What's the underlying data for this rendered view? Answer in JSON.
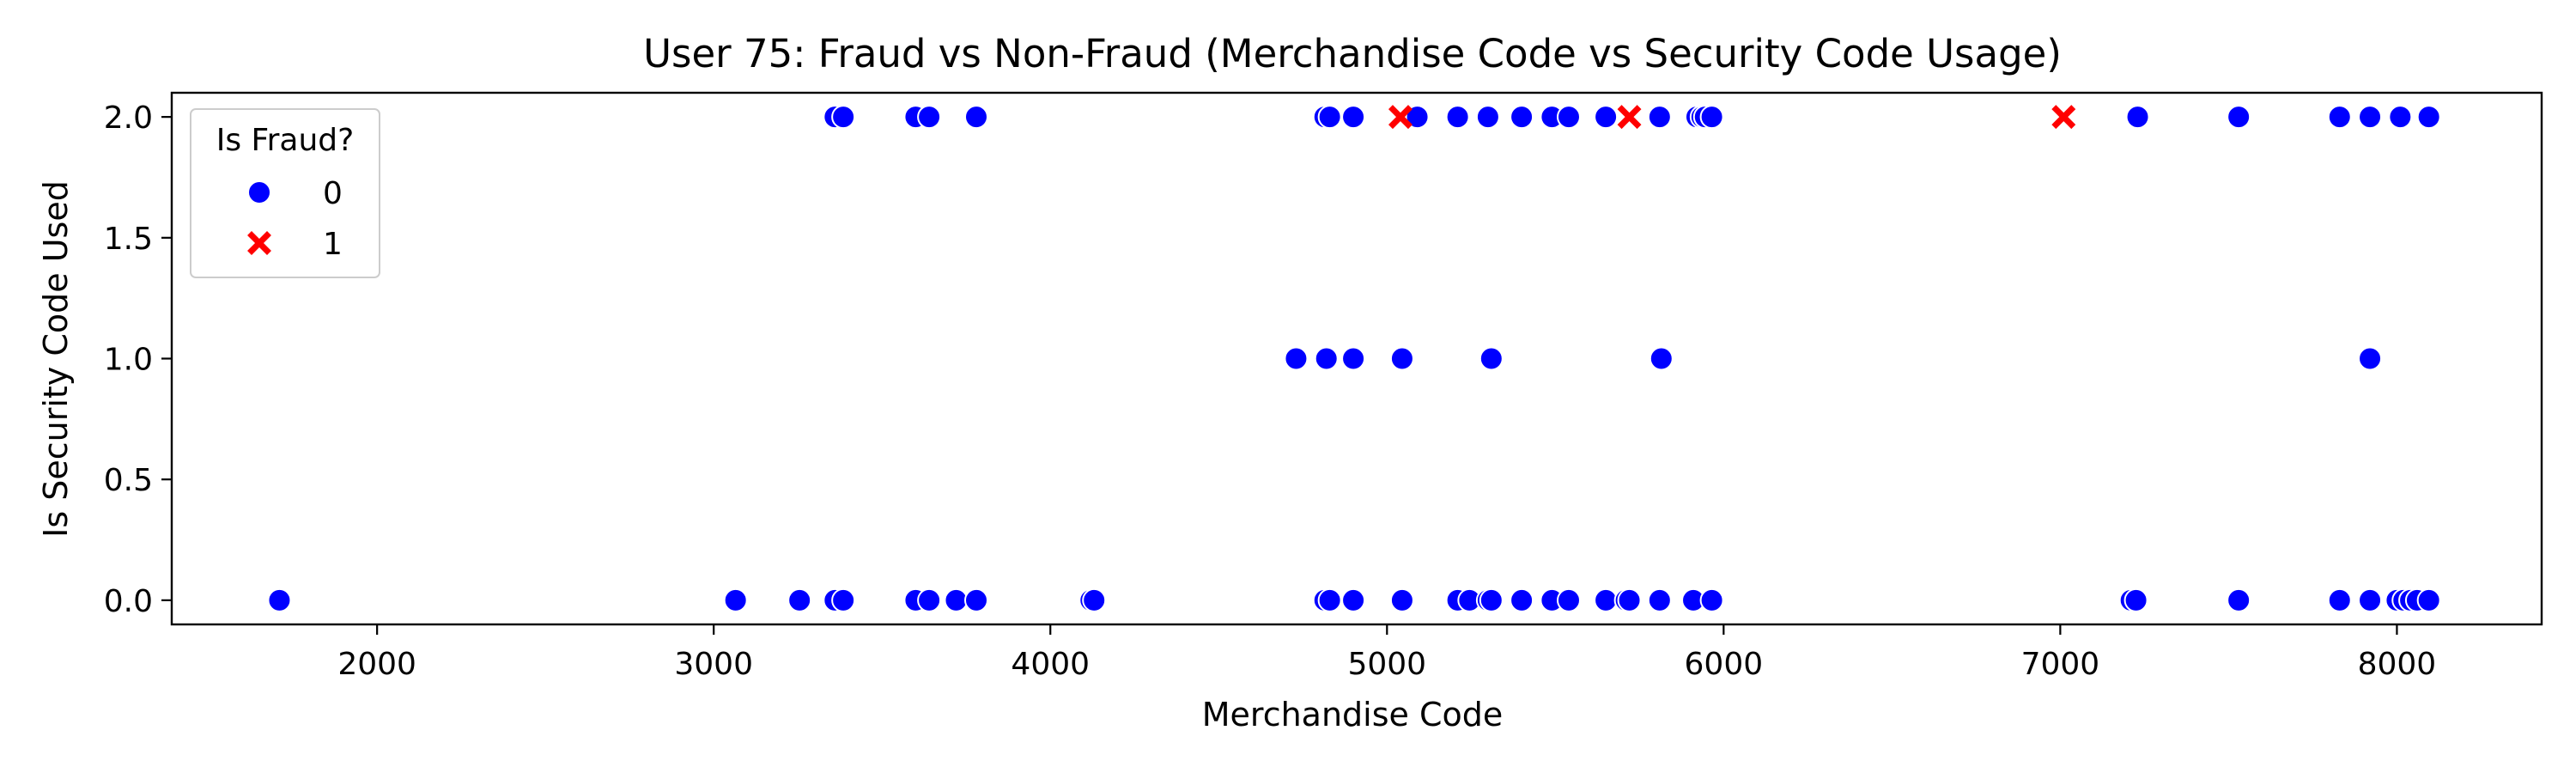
{
  "chart_data": {
    "type": "scatter",
    "title": "User 75: Fraud vs Non-Fraud (Merchandise Code vs Security Code Usage)",
    "xlabel": "Merchandise Code",
    "ylabel": "Is Security Code Used",
    "xlim": [
      1390,
      8430
    ],
    "ylim": [
      -0.1,
      2.1
    ],
    "x_ticks": [
      {
        "value": 2000,
        "label": "2000"
      },
      {
        "value": 3000,
        "label": "3000"
      },
      {
        "value": 4000,
        "label": "4000"
      },
      {
        "value": 5000,
        "label": "5000"
      },
      {
        "value": 6000,
        "label": "6000"
      },
      {
        "value": 7000,
        "label": "7000"
      },
      {
        "value": 8000,
        "label": "8000"
      }
    ],
    "y_ticks": [
      {
        "value": 0.0,
        "label": "0.0"
      },
      {
        "value": 0.5,
        "label": "0.5"
      },
      {
        "value": 1.0,
        "label": "1.0"
      },
      {
        "value": 1.5,
        "label": "1.5"
      },
      {
        "value": 2.0,
        "label": "2.0"
      }
    ],
    "grid": false,
    "legend": {
      "title": "Is Fraud?",
      "placement": "upper-left",
      "entries": [
        {
          "label": "0",
          "marker": "circle",
          "color": "#0000ff"
        },
        {
          "label": "1",
          "marker": "x",
          "color": "#ff0000"
        }
      ]
    },
    "series": [
      {
        "name": "0",
        "marker": "circle",
        "color": "#0000ff",
        "points": [
          [
            3360,
            2
          ],
          [
            3385,
            2
          ],
          [
            3600,
            2
          ],
          [
            3640,
            2
          ],
          [
            3780,
            2
          ],
          [
            4815,
            2
          ],
          [
            4830,
            2
          ],
          [
            4900,
            2
          ],
          [
            5090,
            2
          ],
          [
            5210,
            2
          ],
          [
            5300,
            2
          ],
          [
            5400,
            2
          ],
          [
            5490,
            2
          ],
          [
            5540,
            2
          ],
          [
            5650,
            2
          ],
          [
            5810,
            2
          ],
          [
            5920,
            2
          ],
          [
            5935,
            2
          ],
          [
            5945,
            2
          ],
          [
            5965,
            2
          ],
          [
            7230,
            2
          ],
          [
            7530,
            2
          ],
          [
            7830,
            2
          ],
          [
            7920,
            2
          ],
          [
            8010,
            2
          ],
          [
            8095,
            2
          ],
          [
            4730,
            1
          ],
          [
            4820,
            1
          ],
          [
            4900,
            1
          ],
          [
            5045,
            1
          ],
          [
            5310,
            1
          ],
          [
            5815,
            1
          ],
          [
            7920,
            1
          ],
          [
            1710,
            0
          ],
          [
            3065,
            0
          ],
          [
            3255,
            0
          ],
          [
            3360,
            0
          ],
          [
            3385,
            0
          ],
          [
            3600,
            0
          ],
          [
            3640,
            0
          ],
          [
            3720,
            0
          ],
          [
            3780,
            0
          ],
          [
            4120,
            0
          ],
          [
            4130,
            0
          ],
          [
            4815,
            0
          ],
          [
            4830,
            0
          ],
          [
            4900,
            0
          ],
          [
            5045,
            0
          ],
          [
            5210,
            0
          ],
          [
            5245,
            0
          ],
          [
            5300,
            0
          ],
          [
            5310,
            0
          ],
          [
            5400,
            0
          ],
          [
            5490,
            0
          ],
          [
            5540,
            0
          ],
          [
            5650,
            0
          ],
          [
            5710,
            0
          ],
          [
            5720,
            0
          ],
          [
            5810,
            0
          ],
          [
            5910,
            0
          ],
          [
            5965,
            0
          ],
          [
            7210,
            0
          ],
          [
            7225,
            0
          ],
          [
            7530,
            0
          ],
          [
            7830,
            0
          ],
          [
            7920,
            0
          ],
          [
            8000,
            0
          ],
          [
            8020,
            0
          ],
          [
            8040,
            0
          ],
          [
            8060,
            0
          ],
          [
            8095,
            0
          ]
        ]
      },
      {
        "name": "1",
        "marker": "x",
        "color": "#ff0000",
        "points": [
          [
            5040,
            2
          ],
          [
            5720,
            2
          ],
          [
            7010,
            2
          ]
        ]
      }
    ]
  }
}
